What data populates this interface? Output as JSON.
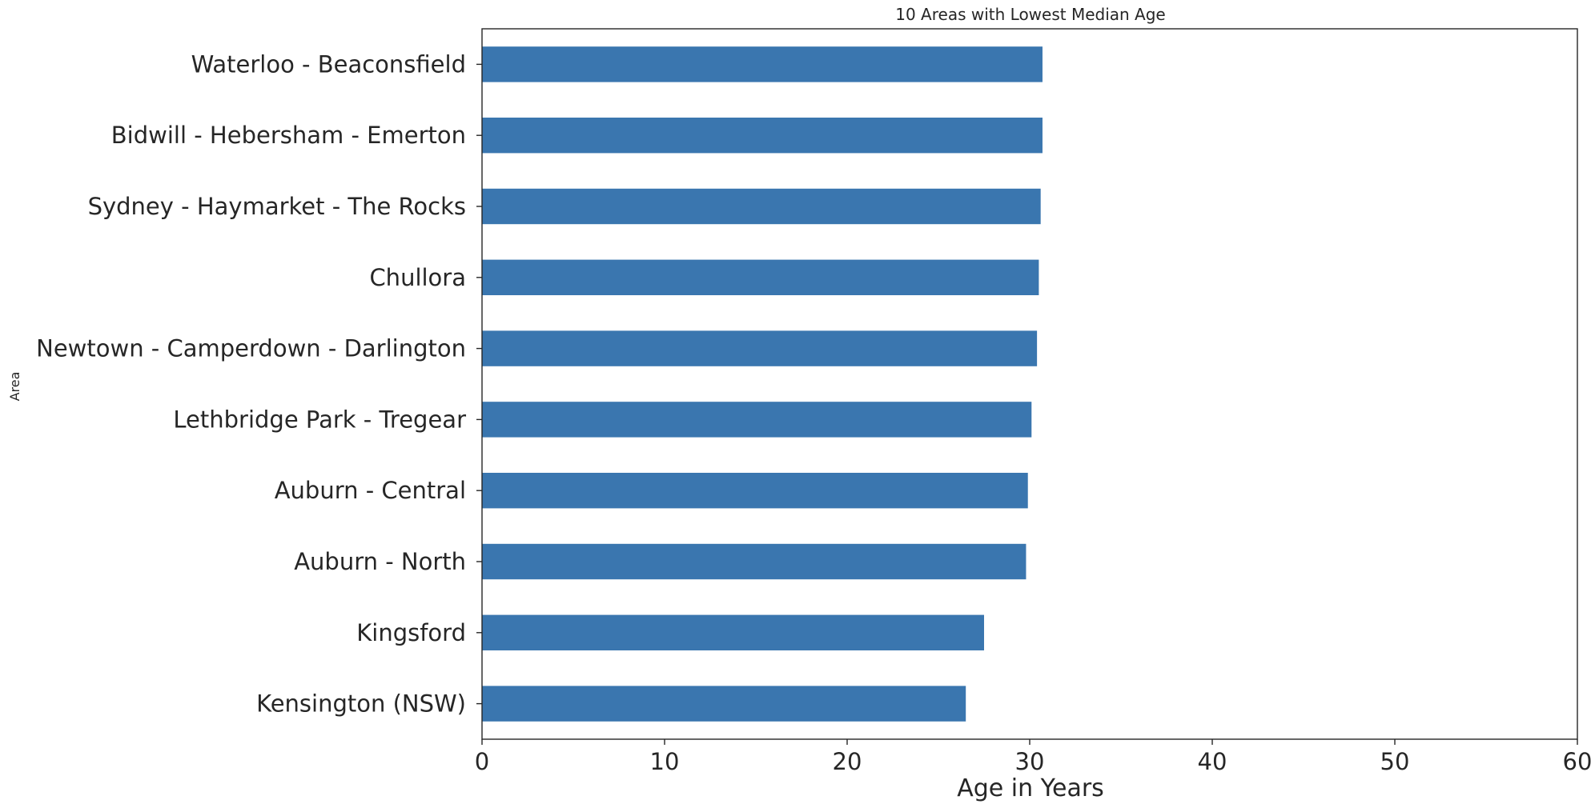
{
  "chart_data": {
    "type": "bar",
    "orientation": "horizontal",
    "title": "10 Areas with Lowest Median Age",
    "xlabel": "Age in Years",
    "ylabel": "Area",
    "xlim": [
      0,
      60
    ],
    "xticks": [
      "0",
      "10",
      "20",
      "30",
      "40",
      "50",
      "60"
    ],
    "grid": false,
    "bar_color": "#3a76af",
    "categories": [
      "Waterloo - Beaconsfield",
      "Bidwill - Hebersham - Emerton",
      "Sydney - Haymarket - The Rocks",
      "Chullora",
      "Newtown - Camperdown - Darlington",
      "Lethbridge Park - Tregear",
      "Auburn - Central",
      "Auburn - North",
      "Kingsford",
      "Kensington (NSW)"
    ],
    "values": [
      30.7,
      30.7,
      30.6,
      30.5,
      30.4,
      30.1,
      29.9,
      29.8,
      27.5,
      26.5
    ]
  }
}
